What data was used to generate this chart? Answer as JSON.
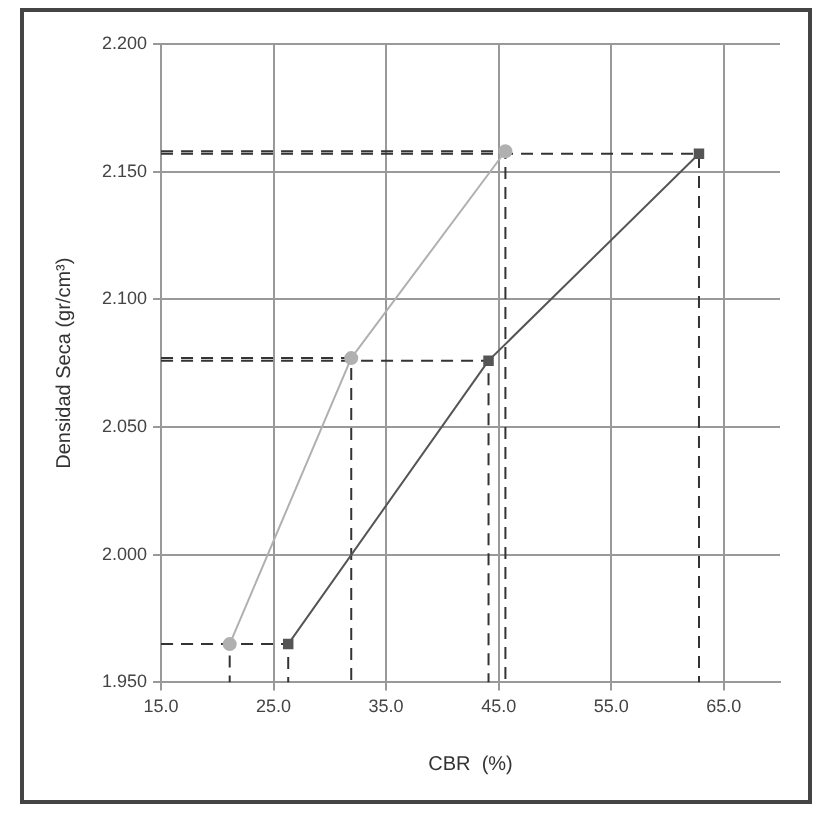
{
  "chart_data": {
    "type": "line",
    "xlabel": "CBR  (%)",
    "ylabel": "Densidad Seca (gr/cm³)",
    "xlim": [
      15,
      70
    ],
    "xticks": [
      {
        "value": 15,
        "label": "15.0"
      },
      {
        "value": 25,
        "label": "25.0"
      },
      {
        "value": 35,
        "label": "35.0"
      },
      {
        "value": 45,
        "label": "45.0"
      },
      {
        "value": 55,
        "label": "55.0"
      },
      {
        "value": 65,
        "label": "65.0"
      }
    ],
    "ylim": [
      1.95,
      2.2
    ],
    "yticks": [
      {
        "value": 1.95,
        "label": "1.950"
      },
      {
        "value": 2.0,
        "label": "2.000"
      },
      {
        "value": 2.05,
        "label": "2.050"
      },
      {
        "value": 2.1,
        "label": "2.100"
      },
      {
        "value": 2.15,
        "label": "2.150"
      },
      {
        "value": 2.2,
        "label": "2.200"
      }
    ],
    "grid": true,
    "legend": false,
    "line_style": "solid",
    "series": [
      {
        "color": "#b0b0b0",
        "marker": "circle",
        "x": [
          21.1,
          31.9,
          45.6
        ],
        "values": [
          1.965,
          2.077,
          2.158
        ]
      },
      {
        "color": "#555555",
        "marker": "square",
        "x": [
          26.3,
          44.1,
          62.8
        ],
        "values": [
          1.965,
          2.076,
          2.157
        ]
      },
      {
        "color": "#333333",
        "marker": "none",
        "line_style": "dashed",
        "x": [
          15,
          21.1,
          21.1
        ],
        "values": [
          1.965,
          1.965,
          1.95
        ]
      },
      {
        "color": "#333333",
        "marker": "none",
        "line_style": "dashed",
        "x": [
          15,
          31.9,
          31.9
        ],
        "values": [
          2.077,
          2.077,
          1.95
        ]
      },
      {
        "color": "#333333",
        "marker": "none",
        "line_style": "dashed",
        "x": [
          15,
          45.6,
          45.6
        ],
        "values": [
          2.158,
          2.158,
          1.95
        ]
      },
      {
        "color": "#333333",
        "marker": "none",
        "line_style": "dashed",
        "x": [
          15,
          26.3,
          26.3
        ],
        "values": [
          1.965,
          1.965,
          1.95
        ]
      },
      {
        "color": "#333333",
        "marker": "none",
        "line_style": "dashed",
        "x": [
          15,
          44.1,
          44.1
        ],
        "values": [
          2.076,
          2.076,
          1.95
        ]
      },
      {
        "color": "#333333",
        "marker": "none",
        "line_style": "dashed",
        "x": [
          15,
          62.8,
          62.8
        ],
        "values": [
          2.157,
          2.157,
          1.95
        ]
      }
    ]
  }
}
